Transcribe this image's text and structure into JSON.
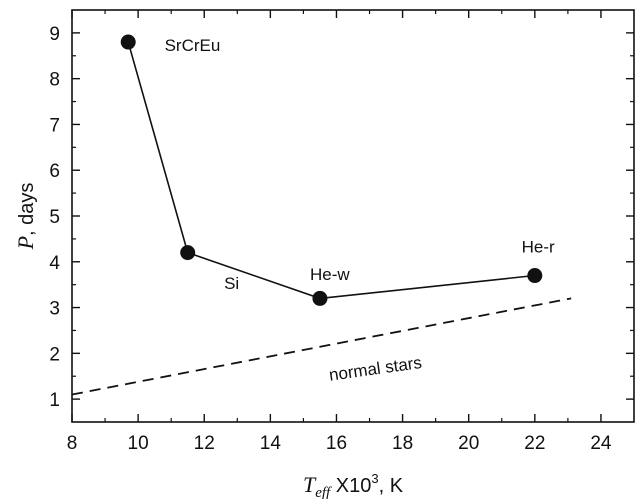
{
  "chart_data": {
    "type": "line",
    "xlabel": {
      "symbol": "T",
      "subscript": "eff",
      "rest": " X10",
      "superscript": "3",
      "unit": ", K"
    },
    "ylabel": {
      "symbol": "P",
      "rest": ", days"
    },
    "xlim": [
      8,
      25
    ],
    "ylim": [
      0.5,
      9.5
    ],
    "xticks": [
      8,
      10,
      12,
      14,
      16,
      18,
      20,
      22,
      24
    ],
    "yticks": [
      1,
      2,
      3,
      4,
      5,
      6,
      7,
      8,
      9
    ],
    "grid": false,
    "series": [
      {
        "style": "solid-with-markers",
        "x": [
          9.7,
          11.5,
          15.5,
          22.0
        ],
        "y": [
          8.8,
          4.2,
          3.2,
          3.7
        ]
      },
      {
        "name": "normal stars",
        "style": "dashed",
        "x": [
          8.0,
          23.1
        ],
        "y": [
          1.1,
          3.2
        ]
      }
    ],
    "annotations": [
      {
        "text": "SrCrEu",
        "x": 10.8,
        "y": 8.6,
        "rotate": 0
      },
      {
        "text": "Si",
        "x": 12.6,
        "y": 3.4,
        "rotate": 0
      },
      {
        "text": "He-w",
        "x": 15.2,
        "y": 3.6,
        "rotate": 0
      },
      {
        "text": "He-r",
        "x": 21.6,
        "y": 4.2,
        "rotate": 0
      },
      {
        "text": "normal stars",
        "x": 15.8,
        "y": 1.4,
        "rotate": -8
      }
    ]
  }
}
